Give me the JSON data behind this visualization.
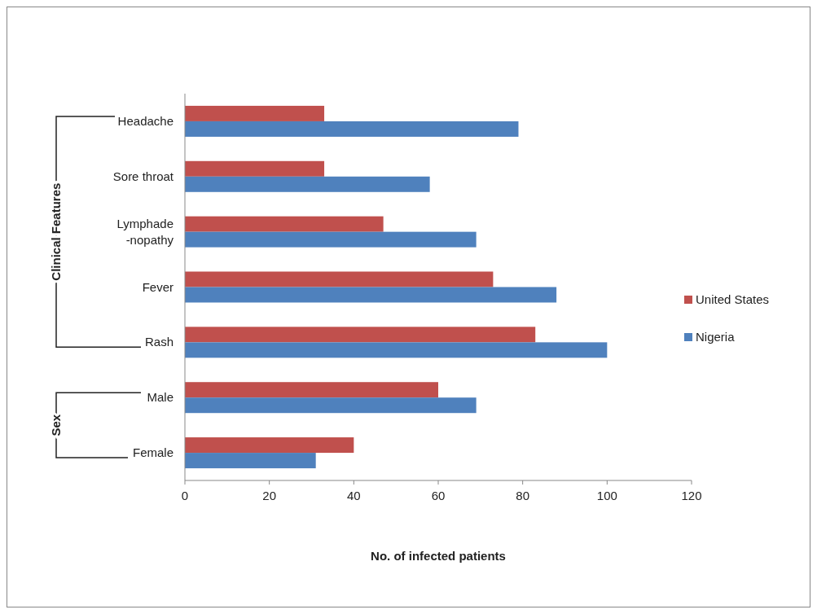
{
  "chart_data": {
    "type": "bar",
    "orientation": "horizontal",
    "categories": [
      "Headache",
      "Sore throat",
      "Lymphade\n-nopathy",
      "Fever",
      "Rash",
      "Male",
      "Female"
    ],
    "series": [
      {
        "name": "United States",
        "color": "#c0504d",
        "values": [
          33,
          33,
          47,
          73,
          83,
          60,
          40
        ]
      },
      {
        "name": "Nigeria",
        "color": "#4f81bd",
        "values": [
          79,
          58,
          69,
          88,
          100,
          69,
          31
        ]
      }
    ],
    "xlim": [
      0,
      120
    ],
    "xticks": [
      0,
      20,
      40,
      60,
      80,
      100,
      120
    ],
    "xlabel": "No. of infected patients",
    "legend": "right",
    "grid": false,
    "annotations": [
      "Clinical Features",
      "Sex"
    ]
  }
}
